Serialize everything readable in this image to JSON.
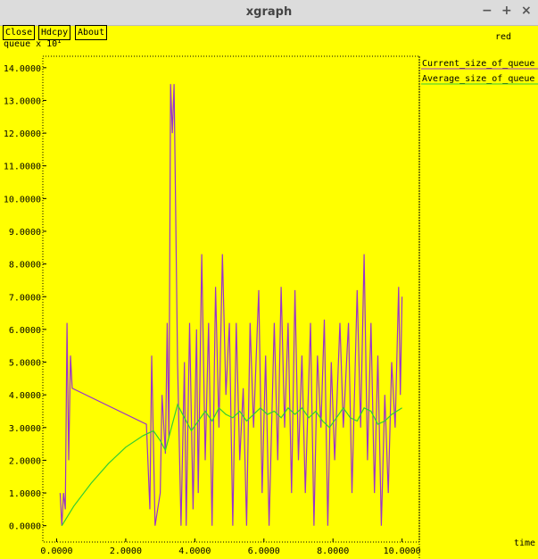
{
  "window": {
    "title": "xgraph",
    "controls": [
      "−",
      "+",
      "×"
    ],
    "buttons": [
      "Close",
      "Hdcpy",
      "About"
    ],
    "subtitle": "red"
  },
  "chart_data": {
    "type": "line",
    "ylabel": "queue x 10",
    "ylabel_exponent": "1",
    "xlabel": "time",
    "xlim": [
      -0.4,
      10.5
    ],
    "ylim": [
      -0.5,
      14.35
    ],
    "xticks": [
      {
        "value": 0,
        "label": "0.0000"
      },
      {
        "value": 2,
        "label": "2.0000"
      },
      {
        "value": 4,
        "label": "4.0000"
      },
      {
        "value": 6,
        "label": "6.0000"
      },
      {
        "value": 8,
        "label": "8.0000"
      },
      {
        "value": 10,
        "label": "10.0000"
      }
    ],
    "yticks": [
      {
        "value": 0,
        "label": "0.0000"
      },
      {
        "value": 1,
        "label": "1.0000"
      },
      {
        "value": 2,
        "label": "2.0000"
      },
      {
        "value": 3,
        "label": "3.0000"
      },
      {
        "value": 4,
        "label": "4.0000"
      },
      {
        "value": 5,
        "label": "5.0000"
      },
      {
        "value": 6,
        "label": "6.0000"
      },
      {
        "value": 7,
        "label": "7.0000"
      },
      {
        "value": 8,
        "label": "8.0000"
      },
      {
        "value": 9,
        "label": "9.0000"
      },
      {
        "value": 10,
        "label": "10.0000"
      },
      {
        "value": 11,
        "label": "11.0000"
      },
      {
        "value": 12,
        "label": "12.0000"
      },
      {
        "value": 13,
        "label": "13.0000"
      },
      {
        "value": 14,
        "label": "14.0000"
      }
    ],
    "series": [
      {
        "name": "Current_size_of_queue",
        "color": "#9933cc",
        "x": [
          0.1,
          0.15,
          0.2,
          0.25,
          0.3,
          0.35,
          0.4,
          0.45,
          2.6,
          2.7,
          2.75,
          2.85,
          3.0,
          3.05,
          3.15,
          3.2,
          3.25,
          3.3,
          3.35,
          3.4,
          3.5,
          3.6,
          3.7,
          3.75,
          3.85,
          3.95,
          4.05,
          4.1,
          4.2,
          4.3,
          4.4,
          4.5,
          4.6,
          4.7,
          4.8,
          4.9,
          5.0,
          5.1,
          5.2,
          5.3,
          5.4,
          5.5,
          5.6,
          5.7,
          5.85,
          5.95,
          6.05,
          6.15,
          6.3,
          6.4,
          6.5,
          6.6,
          6.7,
          6.8,
          6.9,
          7.0,
          7.1,
          7.2,
          7.35,
          7.45,
          7.55,
          7.65,
          7.75,
          7.85,
          7.95,
          8.05,
          8.2,
          8.3,
          8.45,
          8.55,
          8.7,
          8.8,
          8.9,
          9.0,
          9.1,
          9.2,
          9.3,
          9.4,
          9.5,
          9.6,
          9.7,
          9.8,
          9.9,
          9.95,
          10.0
        ],
        "values": [
          1,
          0,
          1,
          0.5,
          6.2,
          2,
          5.2,
          4.2,
          3.1,
          0.5,
          5.2,
          0,
          1,
          4,
          2.2,
          6.2,
          2.7,
          13.5,
          12,
          13.5,
          5,
          0,
          5,
          0,
          6.2,
          0.5,
          6,
          1,
          8.3,
          2,
          6.2,
          0,
          7.3,
          3,
          8.3,
          4,
          6.2,
          0,
          6.2,
          2,
          4.2,
          0,
          6.2,
          3,
          7.2,
          1,
          5.2,
          0,
          6.2,
          2,
          7.3,
          3,
          6.2,
          1,
          7.2,
          2,
          5.2,
          1,
          6.2,
          0,
          5.2,
          3,
          6.3,
          0,
          5,
          2,
          6.2,
          3,
          6.2,
          1,
          7.2,
          3,
          8.3,
          2,
          6.2,
          1,
          5.2,
          0,
          4,
          1,
          5,
          3,
          7.3,
          4,
          7
        ]
      },
      {
        "name": "Average_size_of_queue",
        "color": "#33cc33",
        "x": [
          0.15,
          0.5,
          1,
          1.5,
          2,
          2.5,
          2.8,
          3.0,
          3.15,
          3.3,
          3.5,
          3.7,
          3.9,
          4.1,
          4.3,
          4.5,
          4.7,
          4.9,
          5.1,
          5.3,
          5.5,
          5.7,
          5.9,
          6.1,
          6.3,
          6.5,
          6.7,
          6.9,
          7.1,
          7.3,
          7.5,
          7.7,
          7.9,
          8.1,
          8.3,
          8.5,
          8.7,
          8.9,
          9.1,
          9.3,
          9.5,
          9.7,
          10.0
        ],
        "values": [
          0,
          0.6,
          1.3,
          1.9,
          2.4,
          2.75,
          2.9,
          2.6,
          2.3,
          2.9,
          3.7,
          3.3,
          2.9,
          3.2,
          3.5,
          3.2,
          3.6,
          3.4,
          3.3,
          3.5,
          3.2,
          3.4,
          3.6,
          3.4,
          3.5,
          3.3,
          3.6,
          3.4,
          3.6,
          3.3,
          3.5,
          3.2,
          3.0,
          3.3,
          3.6,
          3.3,
          3.2,
          3.6,
          3.5,
          3.1,
          3.2,
          3.4,
          3.6
        ]
      }
    ]
  }
}
